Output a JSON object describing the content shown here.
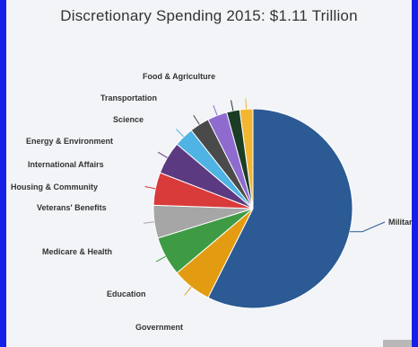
{
  "chart_data": {
    "type": "pie",
    "title": "Discretionary Spending 2015: $1.11 Trillion",
    "categories": [
      "Military",
      "Government",
      "Education",
      "Medicare & Health",
      "Veterans' Benefits",
      "Housing & Community",
      "International Affairs",
      "Energy & Environment",
      "Science",
      "Transportation",
      "Food & Agriculture"
    ],
    "values": [
      54,
      6,
      6,
      5,
      5,
      5,
      3,
      3,
      3,
      2,
      2
    ],
    "colors": [
      "#2b5a94",
      "#e39c11",
      "#3e9b44",
      "#a6a6a6",
      "#d93a3a",
      "#5c3a82",
      "#4fb3e3",
      "#4a4a4a",
      "#8f6bd0",
      "#1b3d25",
      "#f2b632"
    ],
    "legend": "none"
  },
  "leader_colors": [
    "#2b5a94",
    "#e39c11",
    "#3e9b44",
    "#a6a6a6",
    "#d93a3a",
    "#5c3a82",
    "#4fb3e3",
    "#4a4a4a",
    "#8f6bd0",
    "#1b3d25",
    "#f2b632"
  ]
}
